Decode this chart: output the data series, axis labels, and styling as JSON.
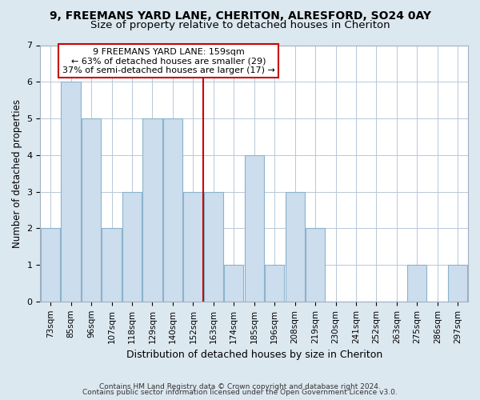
{
  "title": "9, FREEMANS YARD LANE, CHERITON, ALRESFORD, SO24 0AY",
  "subtitle": "Size of property relative to detached houses in Cheriton",
  "xlabel": "Distribution of detached houses by size in Cheriton",
  "ylabel": "Number of detached properties",
  "bar_labels": [
    "73sqm",
    "85sqm",
    "96sqm",
    "107sqm",
    "118sqm",
    "129sqm",
    "140sqm",
    "152sqm",
    "163sqm",
    "174sqm",
    "185sqm",
    "196sqm",
    "208sqm",
    "219sqm",
    "230sqm",
    "241sqm",
    "252sqm",
    "263sqm",
    "275sqm",
    "286sqm",
    "297sqm"
  ],
  "bar_values": [
    2,
    6,
    5,
    2,
    3,
    5,
    5,
    3,
    3,
    1,
    4,
    1,
    3,
    2,
    0,
    0,
    0,
    0,
    1,
    0,
    1
  ],
  "bar_color": "#ccdded",
  "bar_edgecolor": "#8ab4cc",
  "subject_line_index": 7.5,
  "subject_line_color": "#cc0000",
  "annotation_title": "9 FREEMANS YARD LANE: 159sqm",
  "annotation_line1": "← 63% of detached houses are smaller (29)",
  "annotation_line2": "37% of semi-detached houses are larger (17) →",
  "annotation_box_edgecolor": "#cc0000",
  "annotation_box_facecolor": "#ffffff",
  "ylim": [
    0,
    7
  ],
  "footnote1": "Contains HM Land Registry data © Crown copyright and database right 2024.",
  "footnote2": "Contains public sector information licensed under the Open Government Licence v3.0.",
  "background_color": "#dce8f0",
  "plot_background_color": "#ffffff",
  "title_fontsize": 10,
  "subtitle_fontsize": 9.5,
  "tick_fontsize": 7.5,
  "ylabel_fontsize": 8.5,
  "xlabel_fontsize": 9,
  "footnote_fontsize": 6.5
}
